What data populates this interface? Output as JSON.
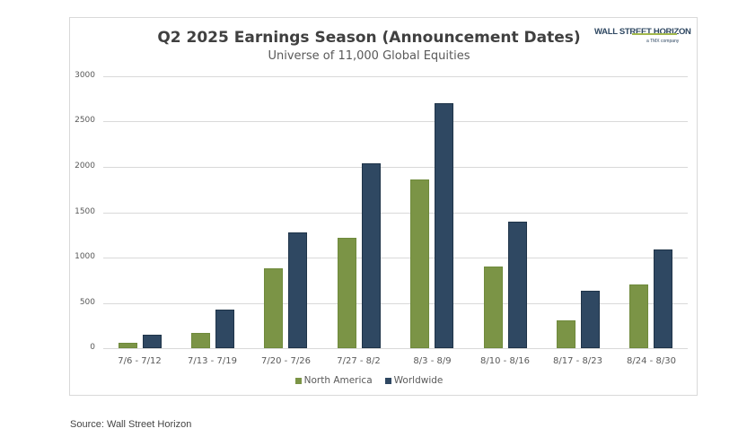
{
  "chart": {
    "title": "Q2 2025 Earnings Season (Announcement Dates)",
    "subtitle": "Universe of 11,000 Global Equities",
    "logo": {
      "main": "WALL STREET HORIZON",
      "sub": "a TMX company"
    },
    "source": "Source: Wall Street Horizon",
    "colors": {
      "north_america": "#7b9446",
      "worldwide": "#2f4862",
      "grid": "#d9d9d9"
    }
  },
  "chart_data": {
    "type": "bar",
    "title": "Q2 2025 Earnings Season (Announcement Dates)",
    "subtitle": "Universe of 11,000 Global Equities",
    "xlabel": "",
    "ylabel": "",
    "ylim": [
      0,
      3000
    ],
    "yticks": [
      0,
      500,
      1000,
      1500,
      2000,
      2500,
      3000
    ],
    "grid": true,
    "legend_position": "bottom",
    "categories": [
      "7/6 - 7/12",
      "7/13 - 7/19",
      "7/20 - 7/26",
      "7/27 - 8/2",
      "8/3 - 8/9",
      "8/10 - 8/16",
      "8/17 - 8/23",
      "8/24 - 8/30"
    ],
    "series": [
      {
        "name": "North America",
        "color": "#7b9446",
        "values": [
          60,
          170,
          880,
          1220,
          1865,
          905,
          305,
          705
        ]
      },
      {
        "name": "Worldwide",
        "color": "#2f4862",
        "values": [
          150,
          425,
          1280,
          2040,
          2700,
          1400,
          630,
          1085
        ]
      }
    ],
    "source": "Source: Wall Street Horizon"
  }
}
